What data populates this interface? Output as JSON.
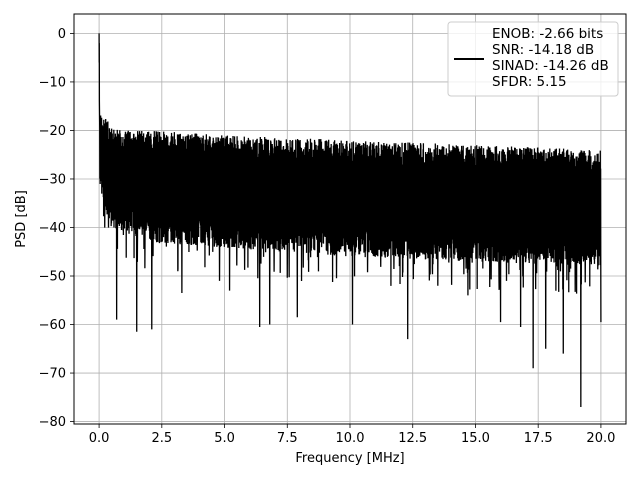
{
  "chart_data": {
    "type": "line",
    "xlabel": "Frequency [MHz]",
    "ylabel": "PSD [dB]",
    "xlim": [
      -1.0,
      21.0
    ],
    "ylim": [
      -80.5,
      4.0
    ],
    "xticks": [
      0.0,
      2.5,
      5.0,
      7.5,
      10.0,
      12.5,
      15.0,
      17.5,
      20.0
    ],
    "xtick_labels": [
      "0.0",
      "2.5",
      "5.0",
      "7.5",
      "10.0",
      "12.5",
      "15.0",
      "17.5",
      "20.0"
    ],
    "yticks": [
      0,
      -10,
      -20,
      -30,
      -40,
      -50,
      -60,
      -70,
      -80
    ],
    "ytick_labels": [
      "0",
      "−10",
      "−20",
      "−30",
      "−40",
      "−50",
      "−60",
      "−70",
      "−80"
    ],
    "grid": true,
    "legend_position": "top-right",
    "legend_entries": [
      "ENOB: -2.66 bits",
      "SNR: -14.18 dB",
      "SINAD: -14.26 dB",
      "SFDR: 5.15"
    ],
    "series": [
      {
        "color": "#000000",
        "spectrum": {
          "x_range": [
            0.0,
            20.0
          ],
          "peak": {
            "x": 0.0,
            "y": 0.0
          },
          "envelope_upper": [
            [
              0.0,
              -16
            ],
            [
              0.5,
              -19
            ],
            [
              1.0,
              -20
            ],
            [
              2.5,
              -20
            ],
            [
              5.0,
              -21
            ],
            [
              10.0,
              -22
            ],
            [
              15.0,
              -23
            ],
            [
              20.0,
              -24
            ]
          ],
          "envelope_lower": [
            [
              0.0,
              -34
            ],
            [
              0.5,
              -40
            ],
            [
              2.0,
              -43
            ],
            [
              10.0,
              -46
            ],
            [
              20.0,
              -48
            ]
          ],
          "notches": [
            [
              0.7,
              -59
            ],
            [
              1.5,
              -61.5
            ],
            [
              2.1,
              -61
            ],
            [
              3.3,
              -53.5
            ],
            [
              4.8,
              -51
            ],
            [
              5.2,
              -53
            ],
            [
              6.4,
              -60.5
            ],
            [
              6.8,
              -60
            ],
            [
              7.9,
              -58.5
            ],
            [
              10.1,
              -60
            ],
            [
              12.3,
              -63
            ],
            [
              13.5,
              -52
            ],
            [
              14.7,
              -54
            ],
            [
              16.0,
              -59.5
            ],
            [
              16.8,
              -60.5
            ],
            [
              17.3,
              -69
            ],
            [
              17.8,
              -65
            ],
            [
              18.5,
              -66
            ],
            [
              19.2,
              -77
            ],
            [
              20.0,
              -59.5
            ]
          ]
        }
      }
    ]
  }
}
